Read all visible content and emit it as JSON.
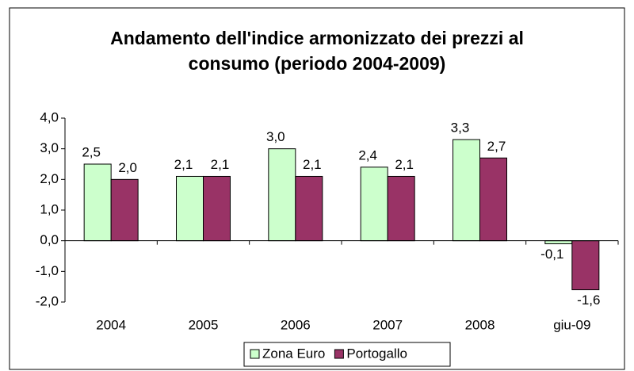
{
  "chart_data": {
    "type": "bar",
    "title": [
      "Andamento dell'indice armonizzato dei prezzi al",
      "consumo (periodo 2004-2009)"
    ],
    "categories": [
      "2004",
      "2005",
      "2006",
      "2007",
      "2008",
      "giu-09"
    ],
    "series": [
      {
        "name": "Zona Euro",
        "color": "#ccffcc",
        "values": [
          2.5,
          2.1,
          3.0,
          2.4,
          3.3,
          -0.1
        ],
        "value_labels": [
          "2,5",
          "2,1",
          "3,0",
          "2,4",
          "3,3",
          "-0,1"
        ]
      },
      {
        "name": "Portogallo",
        "color": "#993366",
        "values": [
          2.0,
          2.1,
          2.1,
          2.1,
          2.7,
          -1.6
        ],
        "value_labels": [
          "2,0",
          "2,1",
          "2,1",
          "2,1",
          "2,7",
          "-1,6"
        ]
      }
    ],
    "ylim": [
      -2,
      4
    ],
    "yticks": [
      {
        "value": -2,
        "label": "-2,0"
      },
      {
        "value": -1,
        "label": "-1,0"
      },
      {
        "value": 0,
        "label": "0,0"
      },
      {
        "value": 1,
        "label": "1,0"
      },
      {
        "value": 2,
        "label": "2,0"
      },
      {
        "value": 3,
        "label": "3,0"
      },
      {
        "value": 4,
        "label": "4,0"
      }
    ],
    "grid": false,
    "legend": "bottom"
  }
}
